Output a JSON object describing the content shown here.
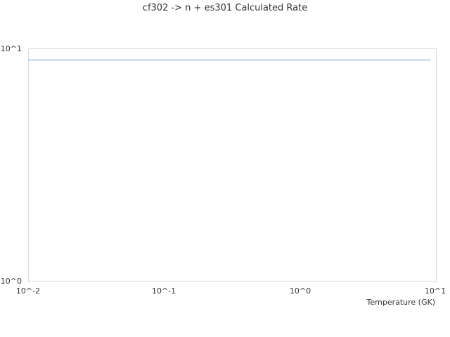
{
  "chart_data": {
    "type": "line",
    "title": "cf302 -> n + es301 Calculated Rate",
    "xlabel": "Temperature (GK)",
    "ylabel": "",
    "xscale": "log",
    "yscale": "log",
    "xlim": [
      0.01,
      10
    ],
    "ylim": [
      1,
      10
    ],
    "xticks": [
      "10^-2",
      "10^-1",
      "10^0",
      "10^1"
    ],
    "yticks": [
      "10^0",
      "10^1"
    ],
    "grid": false,
    "series": [
      {
        "x": [
          0.01,
          9.1
        ],
        "y": [
          8.95,
          8.95
        ],
        "color": "#6a9fd4"
      }
    ]
  }
}
